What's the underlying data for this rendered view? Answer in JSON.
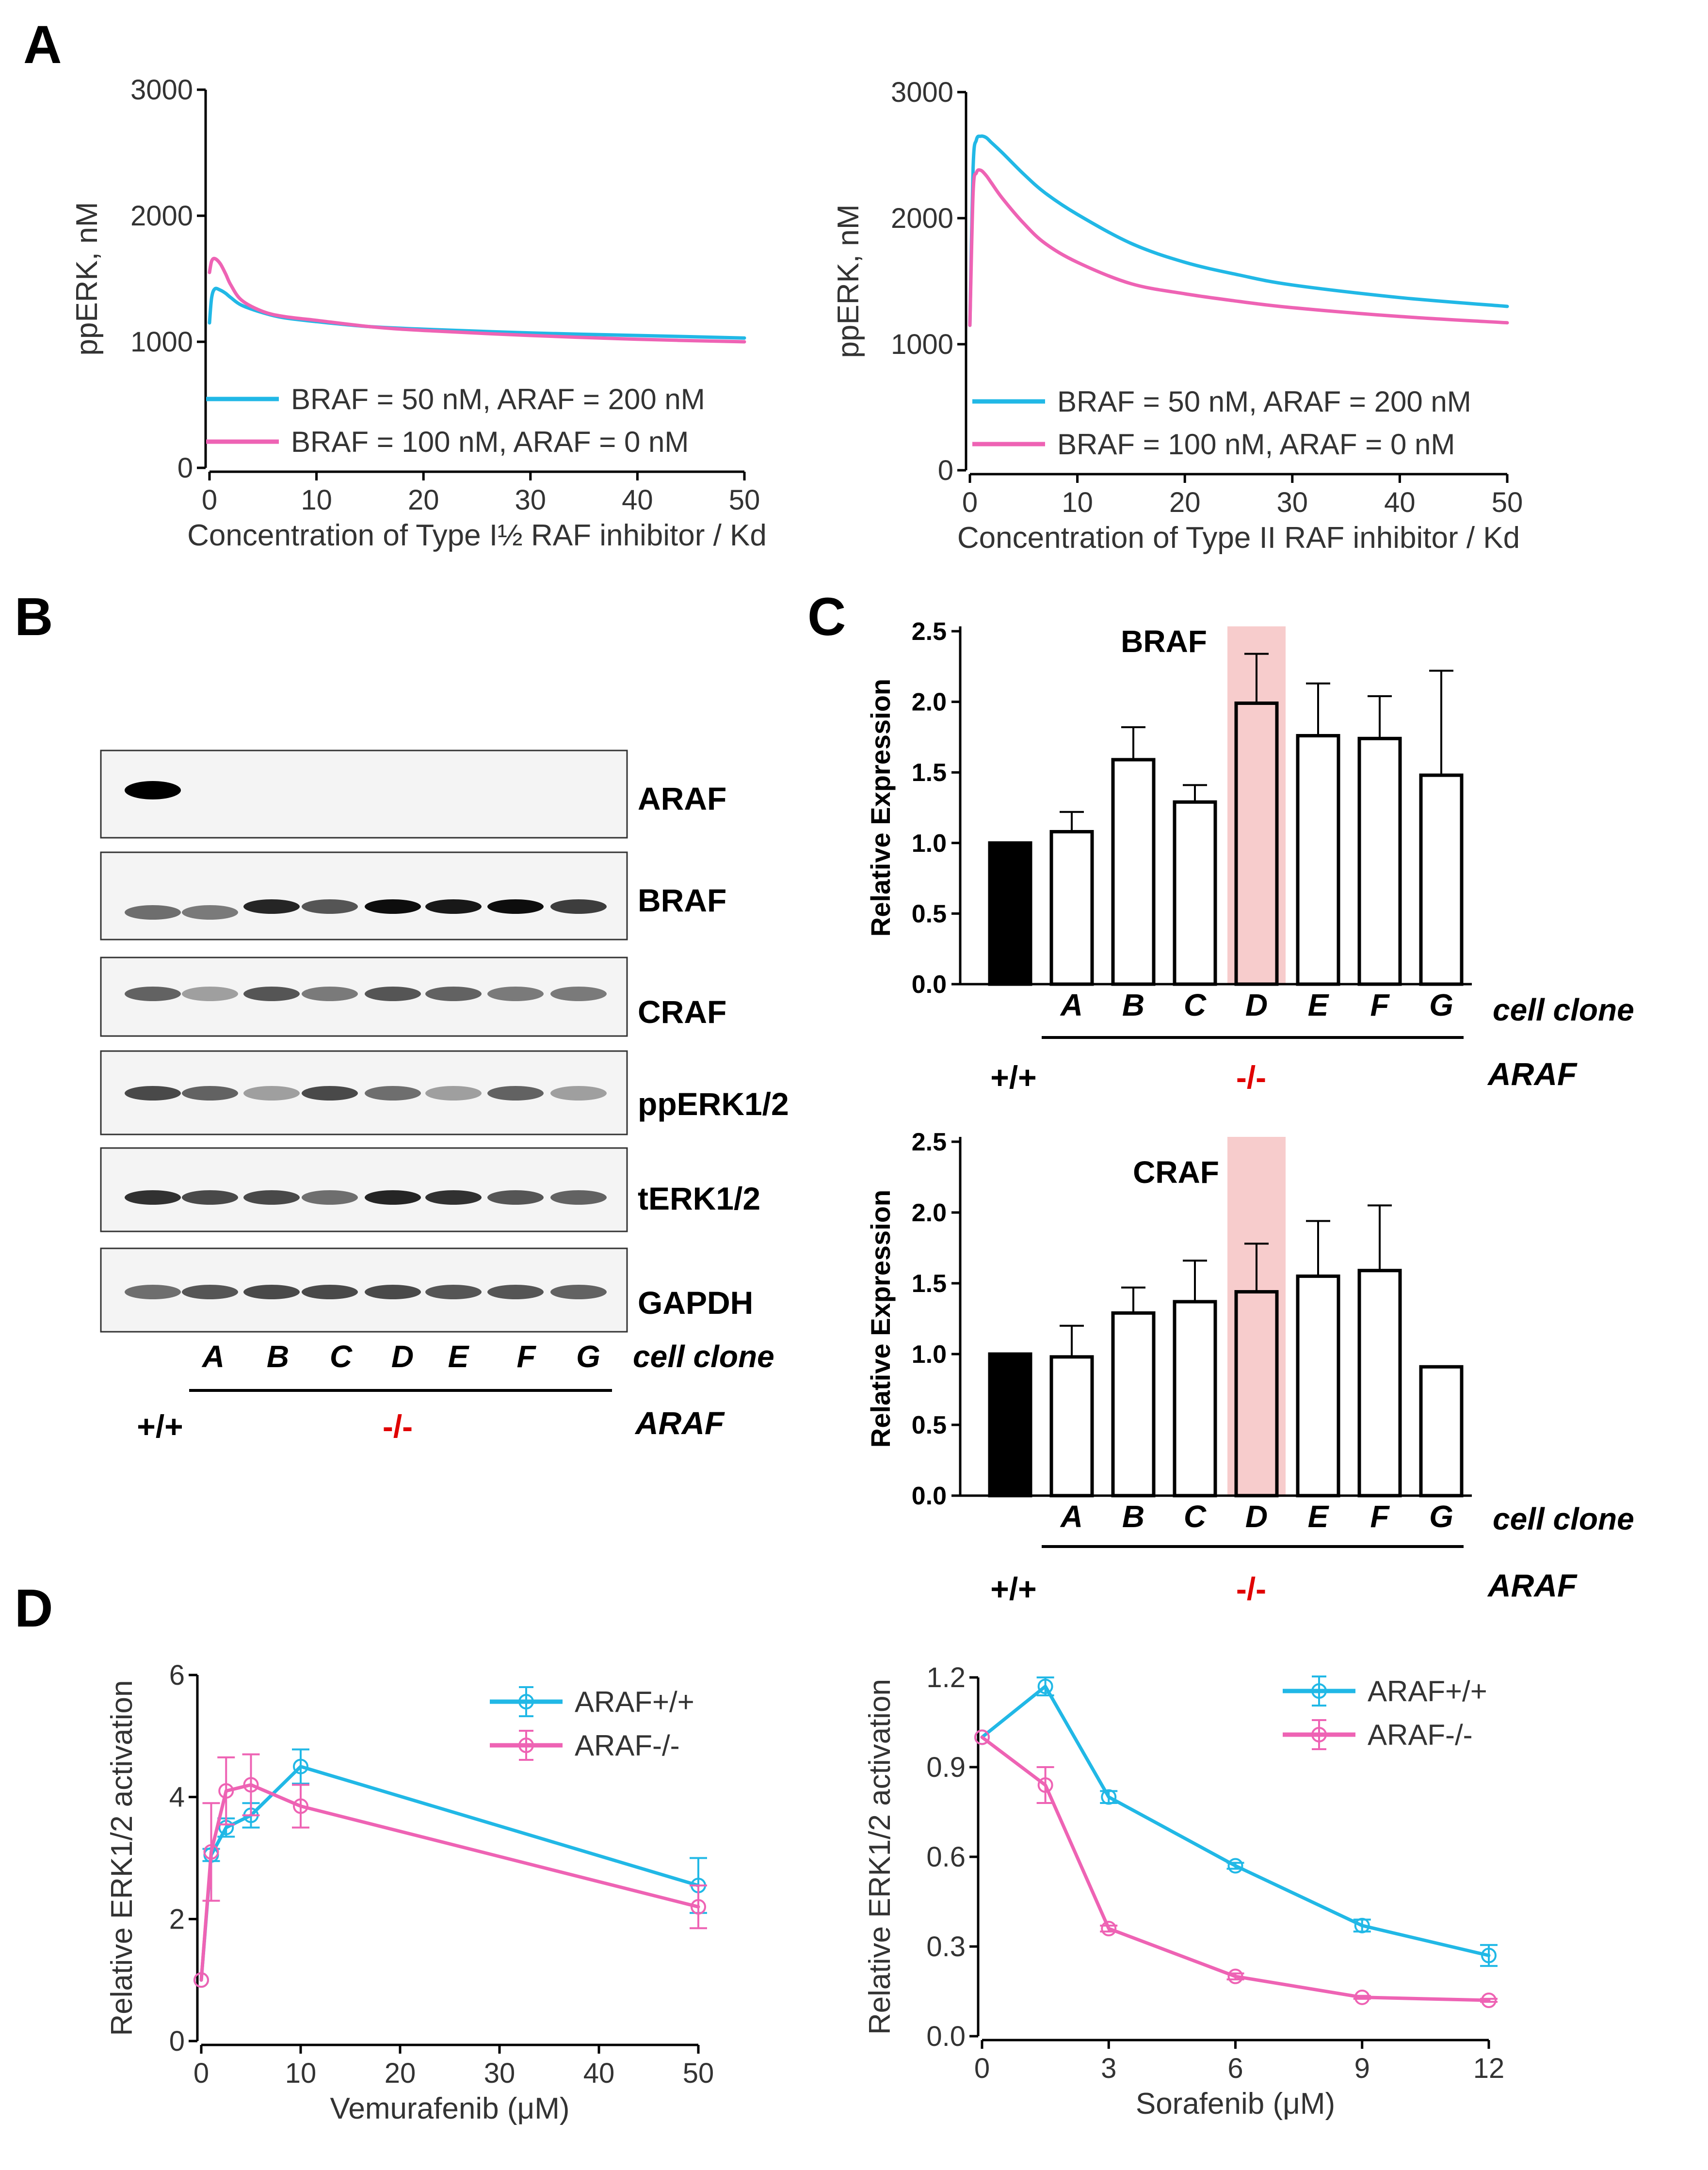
{
  "colors": {
    "blue": "#21b8e6",
    "pink": "#ee63b4",
    "red_text": "#e00000",
    "highlight": "#f7cccc"
  },
  "panels": {
    "A": "A",
    "B": "B",
    "C": "C",
    "D": "D"
  },
  "panel_b": {
    "bands": [
      "ARAF",
      "BRAF",
      "CRAF",
      "ppERK1/2",
      "tERK1/2",
      "GAPDH"
    ],
    "clones": [
      "A",
      "B",
      "C",
      "D",
      "E",
      "F",
      "G"
    ],
    "clone_label": "cell clone",
    "wt": "+/+",
    "ko": "-/-",
    "gene": "ARAF"
  },
  "panel_c": {
    "clone_label": "cell clone",
    "wt": "+/+",
    "ko": "-/-",
    "gene": "ARAF",
    "highlight_clone": "D"
  },
  "chart_data": [
    {
      "id": "A1",
      "type": "line",
      "title": "",
      "xlabel": "Concentration of Type I½ RAF inhibitor / Kd",
      "ylabel": "ppERK, nM",
      "xlim": [
        0,
        50
      ],
      "ylim": [
        0,
        3000
      ],
      "xticks": [
        "0",
        "10",
        "20",
        "30",
        "40",
        "50"
      ],
      "yticks": [
        "0",
        "1000",
        "2000",
        "3000"
      ],
      "series": [
        {
          "name": "BRAF = 50 nM, ARAF = 200 nM",
          "color": "#21b8e6",
          "x": [
            0,
            0.2,
            0.5,
            1,
            1.5,
            2,
            3,
            5,
            7,
            10,
            15,
            20,
            30,
            40,
            50
          ],
          "y": [
            1150,
            1350,
            1420,
            1410,
            1385,
            1350,
            1290,
            1230,
            1190,
            1160,
            1120,
            1100,
            1070,
            1050,
            1030
          ]
        },
        {
          "name": "BRAF = 100 nM, ARAF = 0 nM",
          "color": "#ee63b4",
          "x": [
            0,
            0.2,
            0.5,
            1,
            1.5,
            2,
            3,
            5,
            7,
            10,
            15,
            20,
            30,
            40,
            50
          ],
          "y": [
            1550,
            1640,
            1660,
            1620,
            1540,
            1450,
            1330,
            1240,
            1200,
            1170,
            1120,
            1090,
            1050,
            1020,
            1000
          ]
        }
      ]
    },
    {
      "id": "A2",
      "type": "line",
      "title": "",
      "xlabel": "Concentration of Type II RAF inhibitor / Kd",
      "ylabel": "ppERK, nM",
      "xlim": [
        0,
        50
      ],
      "ylim": [
        0,
        3000
      ],
      "xticks": [
        "0",
        "10",
        "20",
        "30",
        "40",
        "50"
      ],
      "yticks": [
        "0",
        "1000",
        "2000",
        "3000"
      ],
      "series": [
        {
          "name": "BRAF = 50 nM, ARAF = 200 nM",
          "color": "#21b8e6",
          "x": [
            0,
            0.3,
            0.6,
            1,
            1.5,
            2,
            3,
            5,
            7,
            10,
            15,
            20,
            25,
            30,
            40,
            50
          ],
          "y": [
            1150,
            2400,
            2620,
            2650,
            2640,
            2600,
            2520,
            2350,
            2200,
            2030,
            1800,
            1650,
            1550,
            1470,
            1370,
            1300
          ]
        },
        {
          "name": "BRAF = 100 nM, ARAF = 0 nM",
          "color": "#ee63b4",
          "x": [
            0,
            0.3,
            0.6,
            1,
            1.5,
            2,
            3,
            5,
            7,
            10,
            15,
            20,
            25,
            30,
            40,
            50
          ],
          "y": [
            1150,
            2200,
            2360,
            2380,
            2340,
            2280,
            2160,
            1960,
            1800,
            1650,
            1480,
            1400,
            1340,
            1290,
            1220,
            1170
          ]
        }
      ]
    },
    {
      "id": "C1",
      "type": "bar",
      "title": "BRAF",
      "ylabel": "Relative Expression",
      "ylim": [
        0,
        2.5
      ],
      "yticks": [
        "0.0",
        "0.5",
        "1.0",
        "1.5",
        "2.0",
        "2.5"
      ],
      "categories": [
        "+/+",
        "A",
        "B",
        "C",
        "D",
        "E",
        "F",
        "G"
      ],
      "values": [
        1.0,
        1.08,
        1.59,
        1.29,
        1.99,
        1.76,
        1.74,
        1.48
      ],
      "errors": [
        0.0,
        0.14,
        0.23,
        0.12,
        0.35,
        0.37,
        0.3,
        0.74
      ]
    },
    {
      "id": "C2",
      "type": "bar",
      "title": "CRAF",
      "ylabel": "Relative Expression",
      "ylim": [
        0,
        2.5
      ],
      "yticks": [
        "0.0",
        "0.5",
        "1.0",
        "1.5",
        "2.0",
        "2.5"
      ],
      "categories": [
        "+/+",
        "A",
        "B",
        "C",
        "D",
        "E",
        "F",
        "G"
      ],
      "values": [
        1.0,
        0.98,
        1.29,
        1.37,
        1.44,
        1.55,
        1.59,
        0.91
      ],
      "errors": [
        0.0,
        0.22,
        0.18,
        0.29,
        0.34,
        0.39,
        0.46,
        0.0
      ]
    },
    {
      "id": "D1",
      "type": "line",
      "title": "",
      "xlabel": "Vemurafenib (μM)",
      "ylabel": "Relative ERK1/2 activation",
      "xlim": [
        0,
        50
      ],
      "ylim": [
        0,
        6
      ],
      "xticks": [
        "0",
        "10",
        "20",
        "30",
        "40",
        "50"
      ],
      "yticks": [
        "0",
        "2",
        "4",
        "6"
      ],
      "series": [
        {
          "name": "ARAF+/+",
          "color": "#21b8e6",
          "x": [
            0,
            1,
            2.5,
            5,
            10,
            50
          ],
          "y": [
            1.0,
            3.05,
            3.5,
            3.7,
            4.5,
            2.55
          ],
          "err": [
            0.0,
            0.1,
            0.15,
            0.2,
            0.28,
            0.45
          ]
        },
        {
          "name": "ARAF-/-",
          "color": "#ee63b4",
          "x": [
            0,
            1,
            2.5,
            5,
            10,
            50
          ],
          "y": [
            1.0,
            3.1,
            4.1,
            4.2,
            3.85,
            2.2
          ],
          "err": [
            0.0,
            0.8,
            0.55,
            0.5,
            0.35,
            0.35
          ]
        }
      ]
    },
    {
      "id": "D2",
      "type": "line",
      "title": "",
      "xlabel": "Sorafenib (μM)",
      "ylabel": "Relative ERK1/2 activation",
      "xlim": [
        0,
        12
      ],
      "ylim": [
        0,
        1.2
      ],
      "xticks": [
        "0",
        "3",
        "6",
        "9",
        "12"
      ],
      "yticks": [
        "0.0",
        "0.3",
        "0.6",
        "0.9",
        "1.2"
      ],
      "series": [
        {
          "name": "ARAF+/+",
          "color": "#21b8e6",
          "x": [
            0,
            1.5,
            3,
            6,
            9,
            12
          ],
          "y": [
            1.0,
            1.17,
            0.8,
            0.57,
            0.37,
            0.27
          ],
          "err": [
            0.0,
            0.03,
            0.02,
            0.01,
            0.02,
            0.035
          ]
        },
        {
          "name": "ARAF-/-",
          "color": "#ee63b4",
          "x": [
            0,
            1.5,
            3,
            6,
            9,
            12
          ],
          "y": [
            1.0,
            0.84,
            0.36,
            0.2,
            0.13,
            0.12
          ],
          "err": [
            0.0,
            0.06,
            0.01,
            0.01,
            0.005,
            0.005
          ]
        }
      ]
    }
  ]
}
